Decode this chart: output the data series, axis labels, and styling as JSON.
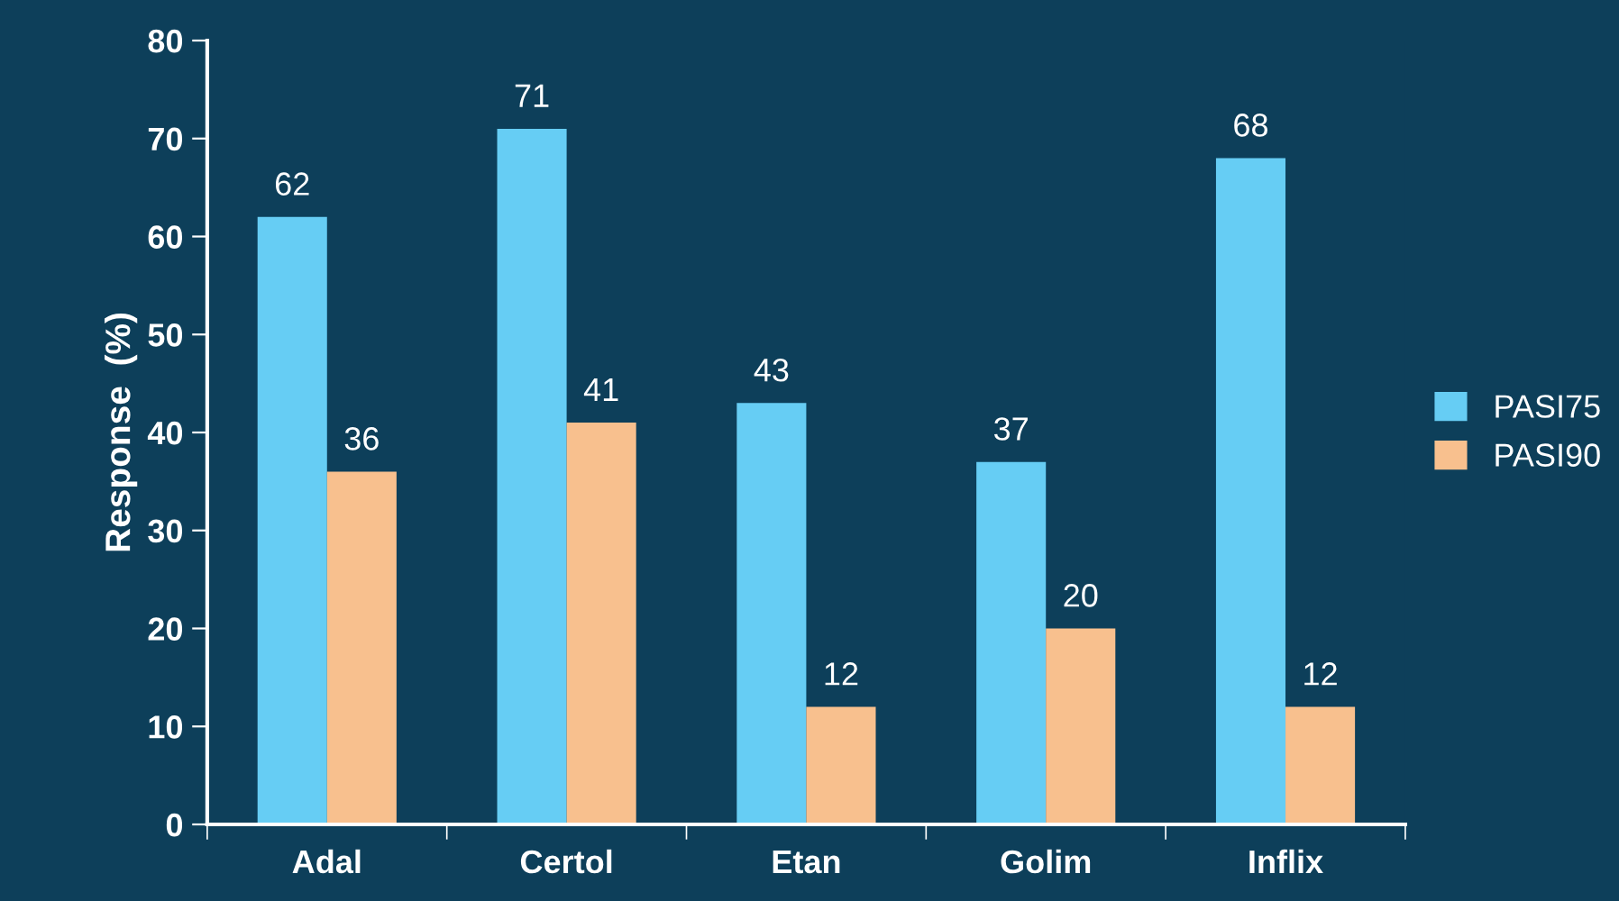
{
  "chart_data": {
    "type": "bar",
    "ylabel": "Response  (%)",
    "categories": [
      "Adal",
      "Certol",
      "Etan",
      "Golim",
      "Inflix"
    ],
    "series": [
      {
        "name": "PASI75",
        "color": "#66cdf4",
        "values": [
          62,
          71,
          43,
          37,
          68
        ]
      },
      {
        "name": "PASI90",
        "color": "#f8c08e",
        "values": [
          36,
          41,
          12,
          20,
          12
        ]
      }
    ],
    "ylim": [
      0,
      80
    ],
    "yticks": [
      0,
      10,
      20,
      30,
      40,
      50,
      60,
      70,
      80
    ],
    "data_labels": true,
    "grid": false,
    "legend": "right"
  }
}
